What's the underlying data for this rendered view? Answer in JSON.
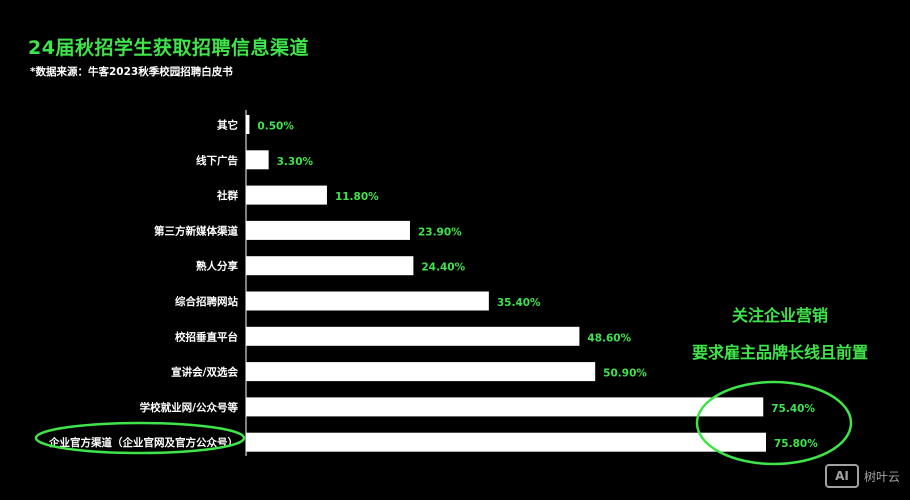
{
  "header": {
    "title": "24届秋招学生获取招聘信息渠道",
    "source": "*数据来源：牛客2023秋季校园招聘白皮书"
  },
  "colors": {
    "background": "#000000",
    "accent_green": "#3fe34a",
    "bar": "#ffffff"
  },
  "chart_data": {
    "type": "bar",
    "orientation": "horizontal",
    "title": "24届秋招学生获取招聘信息渠道",
    "categories": [
      "其它",
      "线下广告",
      "社群",
      "第三方新媒体渠道",
      "熟人分享",
      "综合招聘网站",
      "校招垂直平台",
      "宣讲会/双选会",
      "学校就业网/公众号等",
      "企业官方渠道（企业官网及官方公众号）"
    ],
    "values": [
      0.5,
      3.3,
      11.8,
      23.9,
      24.4,
      35.4,
      48.6,
      50.9,
      75.4,
      75.8
    ],
    "value_labels": [
      "0.50%",
      "3.30%",
      "11.80%",
      "23.90%",
      "24.40%",
      "35.40%",
      "48.60%",
      "50.90%",
      "75.40%",
      "75.80%"
    ],
    "unit": "%",
    "grid": false,
    "highlighted": [
      "企业官方渠道（企业官网及官方公众号）",
      "学校就业网/公众号等"
    ]
  },
  "callout": {
    "line1": "关注企业营销",
    "line2": "要求雇主品牌长线且前置"
  },
  "watermark": {
    "logo": "AI",
    "text": "树叶云"
  }
}
